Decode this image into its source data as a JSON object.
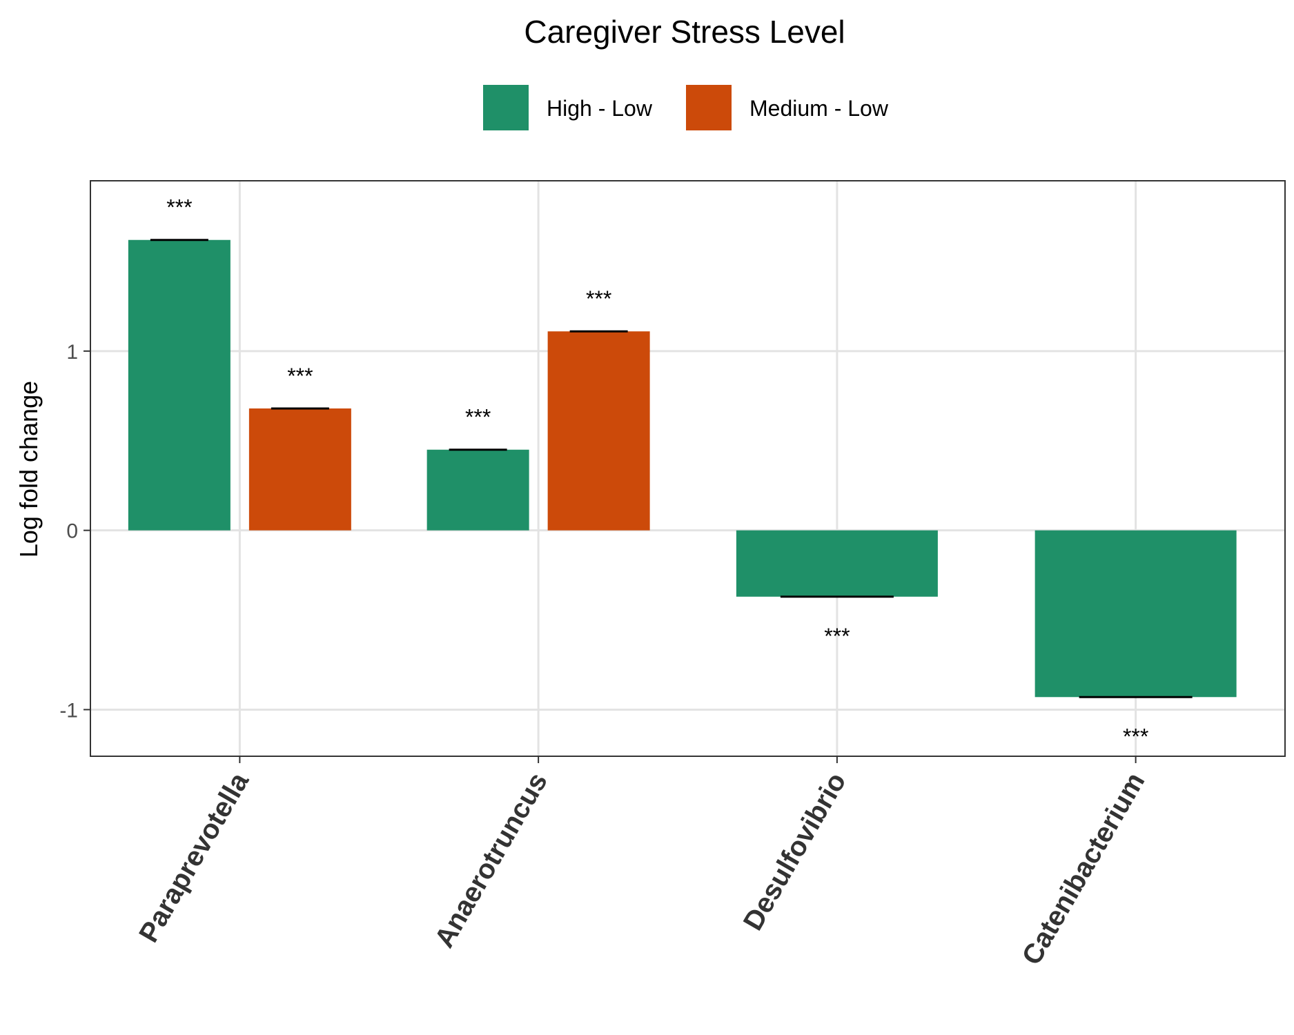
{
  "chart_data": {
    "type": "bar",
    "title": "Caregiver Stress Level",
    "xlabel": "",
    "ylabel": "Log fold change",
    "categories": [
      "Paraprevotella",
      "Anaerotruncus",
      "Desulfovibrio",
      "Catenibacterium"
    ],
    "series": [
      {
        "name": "High - Low",
        "color": "#1F9068",
        "values": [
          1.62,
          0.45,
          -0.37,
          -0.93
        ]
      },
      {
        "name": "Medium - Low",
        "color": "#CC4A0A",
        "values": [
          0.68,
          1.11,
          null,
          null
        ]
      }
    ],
    "annotations": [
      {
        "category": "Paraprevotella",
        "series": "High - Low",
        "text": "***"
      },
      {
        "category": "Paraprevotella",
        "series": "Medium - Low",
        "text": "***"
      },
      {
        "category": "Anaerotruncus",
        "series": "High - Low",
        "text": "***"
      },
      {
        "category": "Anaerotruncus",
        "series": "Medium - Low",
        "text": "***"
      },
      {
        "category": "Desulfovibrio",
        "series": "High - Low",
        "text": "***"
      },
      {
        "category": "Catenibacterium",
        "series": "High - Low",
        "text": "***"
      }
    ],
    "yticks": [
      -1,
      0,
      1
    ],
    "ytick_labels": [
      "-1",
      "0",
      "1"
    ],
    "ylim": [
      -1.26,
      1.95
    ],
    "grid": true,
    "legend_position": "top"
  }
}
